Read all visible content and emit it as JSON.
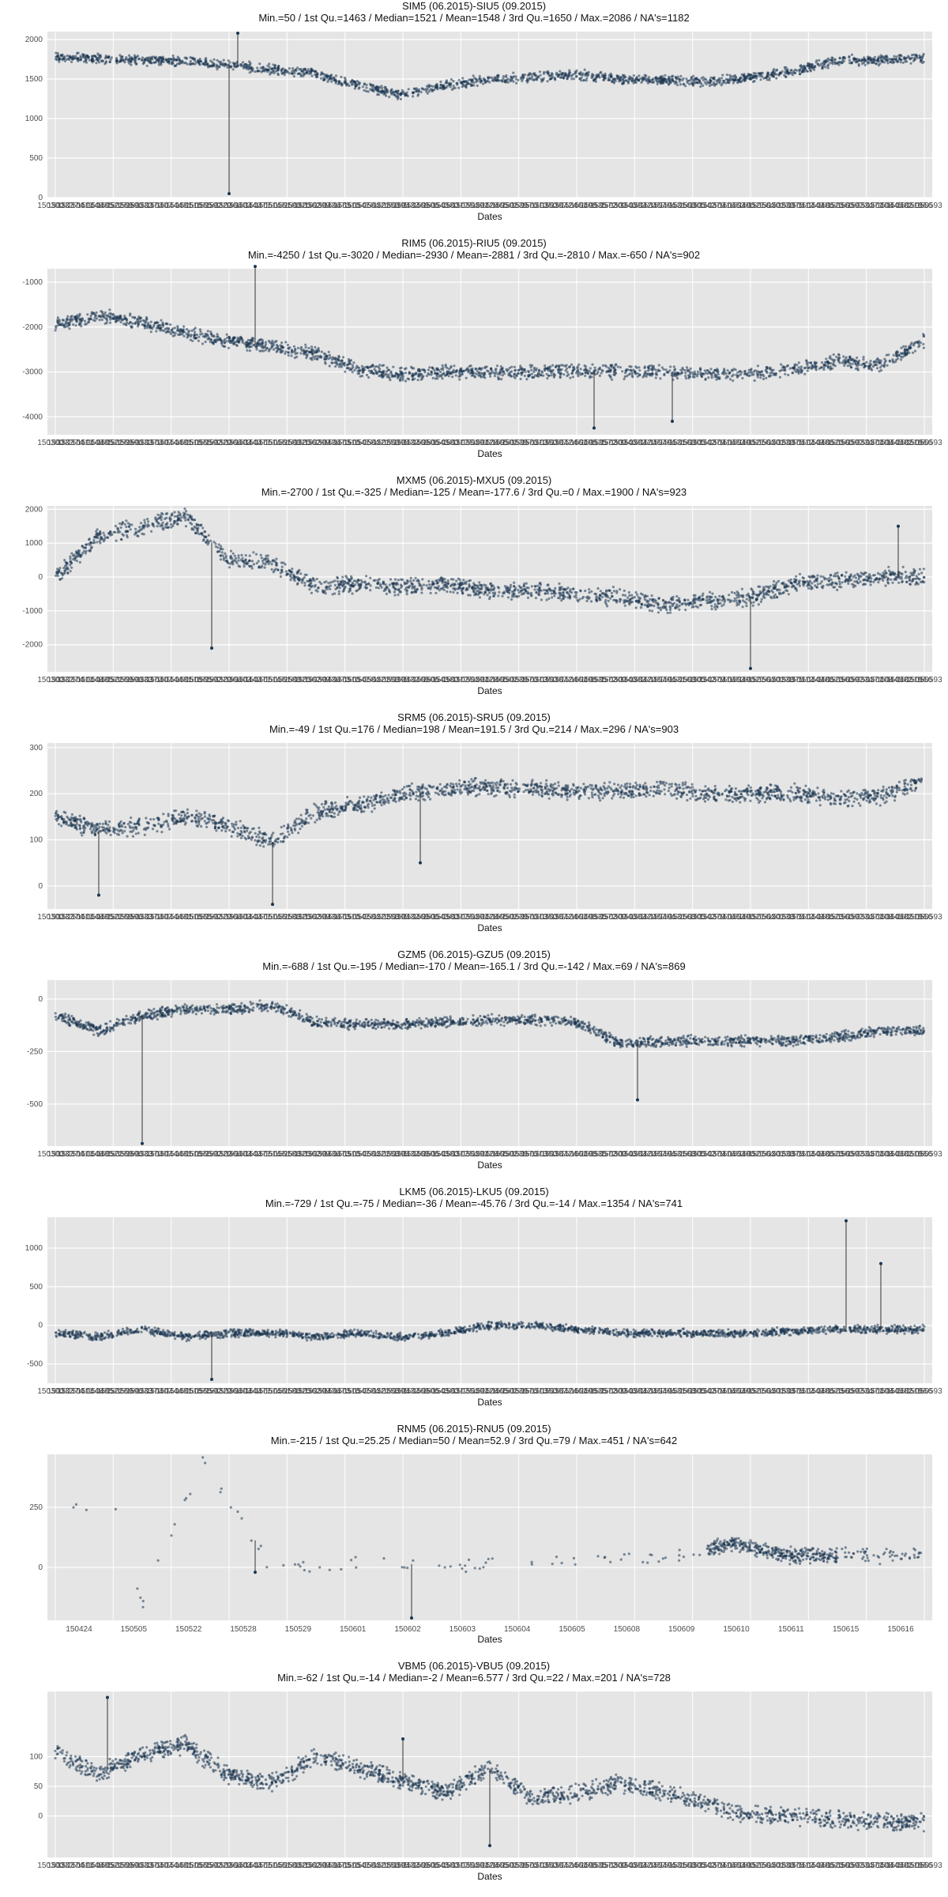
{
  "chart_data": [
    {
      "type": "scatter",
      "title": "SIM5 (06.2015)-SIU5 (09.2015)",
      "subtitle": "Min.=50 / 1st Qu.=1463 / Median=1521 / Mean=1548 / 3rd Qu.=1650 / Max.=2086 / NA's=1182",
      "xlabel": "Dates",
      "ylim": [
        0,
        2100
      ],
      "yticks": [
        0,
        500,
        1000,
        1500,
        2000
      ],
      "x_tick_labels": "dense",
      "trend": [
        [
          0,
          1780
        ],
        [
          0.05,
          1760
        ],
        [
          0.1,
          1740
        ],
        [
          0.15,
          1720
        ],
        [
          0.2,
          1680
        ],
        [
          0.25,
          1620
        ],
        [
          0.3,
          1560
        ],
        [
          0.35,
          1420
        ],
        [
          0.4,
          1300
        ],
        [
          0.45,
          1420
        ],
        [
          0.5,
          1500
        ],
        [
          0.55,
          1520
        ],
        [
          0.6,
          1560
        ],
        [
          0.65,
          1500
        ],
        [
          0.7,
          1480
        ],
        [
          0.75,
          1470
        ],
        [
          0.8,
          1520
        ],
        [
          0.85,
          1600
        ],
        [
          0.9,
          1740
        ],
        [
          0.95,
          1740
        ],
        [
          1.0,
          1760
        ]
      ],
      "spread": 50,
      "outliers": [
        [
          0.2,
          50
        ],
        [
          0.21,
          2080
        ]
      ]
    },
    {
      "type": "scatter",
      "title": "RIM5 (06.2015)-RIU5 (09.2015)",
      "subtitle": "Min.=-4250 / 1st Qu.=-3020 / Median=-2930 / Mean=-2881 / 3rd Qu.=-2810 / Max.=-650 / NA's=902",
      "xlabel": "Dates",
      "ylim": [
        -4400,
        -700
      ],
      "yticks": [
        -4000,
        -3000,
        -2000,
        -1000
      ],
      "x_tick_labels": "dense",
      "trend": [
        [
          0,
          -1950
        ],
        [
          0.05,
          -1750
        ],
        [
          0.1,
          -1900
        ],
        [
          0.15,
          -2150
        ],
        [
          0.2,
          -2300
        ],
        [
          0.25,
          -2450
        ],
        [
          0.3,
          -2600
        ],
        [
          0.35,
          -2950
        ],
        [
          0.4,
          -3050
        ],
        [
          0.45,
          -3000
        ],
        [
          0.5,
          -3000
        ],
        [
          0.55,
          -3000
        ],
        [
          0.6,
          -2950
        ],
        [
          0.65,
          -3000
        ],
        [
          0.7,
          -3000
        ],
        [
          0.75,
          -3050
        ],
        [
          0.8,
          -3050
        ],
        [
          0.85,
          -2950
        ],
        [
          0.9,
          -2750
        ],
        [
          0.95,
          -2850
        ],
        [
          1.0,
          -2300
        ]
      ],
      "spread": 120,
      "outliers": [
        [
          0.23,
          -650
        ],
        [
          0.62,
          -4250
        ],
        [
          0.71,
          -4100
        ]
      ]
    },
    {
      "type": "scatter",
      "title": "MXM5 (06.2015)-MXU5 (09.2015)",
      "subtitle": "Min.=-2700 / 1st Qu.=-325 / Median=-125 / Mean=-177.6 / 3rd Qu.=0 / Max.=1900 / NA's=923",
      "xlabel": "Dates",
      "ylim": [
        -2800,
        2100
      ],
      "yticks": [
        -2000,
        -1000,
        0,
        1000,
        2000
      ],
      "x_tick_labels": "dense",
      "trend": [
        [
          0,
          0
        ],
        [
          0.05,
          1200
        ],
        [
          0.1,
          1500
        ],
        [
          0.15,
          1800
        ],
        [
          0.2,
          500
        ],
        [
          0.25,
          400
        ],
        [
          0.3,
          -300
        ],
        [
          0.35,
          -200
        ],
        [
          0.4,
          -300
        ],
        [
          0.45,
          -200
        ],
        [
          0.5,
          -400
        ],
        [
          0.55,
          -400
        ],
        [
          0.6,
          -500
        ],
        [
          0.65,
          -600
        ],
        [
          0.7,
          -800
        ],
        [
          0.75,
          -700
        ],
        [
          0.8,
          -600
        ],
        [
          0.85,
          -200
        ],
        [
          0.9,
          -100
        ],
        [
          0.95,
          0
        ],
        [
          1.0,
          0
        ]
      ],
      "spread": 200,
      "outliers": [
        [
          0.18,
          -2100
        ],
        [
          0.8,
          -2700
        ],
        [
          0.97,
          1500
        ]
      ]
    },
    {
      "type": "scatter",
      "title": "SRM5 (06.2015)-SRU5 (09.2015)",
      "subtitle": "Min.=-49 / 1st Qu.=176 / Median=198 / Mean=191.5 / 3rd Qu.=214 / Max.=296 / NA's=903",
      "xlabel": "Dates",
      "ylim": [
        -50,
        310
      ],
      "yticks": [
        0,
        100,
        200,
        300
      ],
      "x_tick_labels": "dense",
      "trend": [
        [
          0,
          150
        ],
        [
          0.05,
          120
        ],
        [
          0.1,
          130
        ],
        [
          0.15,
          150
        ],
        [
          0.2,
          130
        ],
        [
          0.25,
          95
        ],
        [
          0.3,
          160
        ],
        [
          0.35,
          175
        ],
        [
          0.4,
          200
        ],
        [
          0.45,
          210
        ],
        [
          0.5,
          215
        ],
        [
          0.55,
          210
        ],
        [
          0.6,
          205
        ],
        [
          0.65,
          205
        ],
        [
          0.7,
          210
        ],
        [
          0.75,
          200
        ],
        [
          0.8,
          200
        ],
        [
          0.85,
          200
        ],
        [
          0.9,
          190
        ],
        [
          0.95,
          195
        ],
        [
          1.0,
          230
        ]
      ],
      "spread": 15,
      "outliers": [
        [
          0.25,
          -40
        ],
        [
          0.42,
          50
        ],
        [
          0.05,
          -20
        ]
      ]
    },
    {
      "type": "scatter",
      "title": "GZM5 (06.2015)-GZU5 (09.2015)",
      "subtitle": "Min.=-688 / 1st Qu.=-195 / Median=-170 / Mean=-165.1 / 3rd Qu.=-142 / Max.=69 / NA's=869",
      "xlabel": "Dates",
      "ylim": [
        -700,
        90
      ],
      "yticks": [
        -500,
        -250,
        0
      ],
      "x_tick_labels": "dense",
      "trend": [
        [
          0,
          -80
        ],
        [
          0.05,
          -150
        ],
        [
          0.1,
          -80
        ],
        [
          0.15,
          -50
        ],
        [
          0.2,
          -50
        ],
        [
          0.25,
          -30
        ],
        [
          0.3,
          -110
        ],
        [
          0.35,
          -120
        ],
        [
          0.4,
          -120
        ],
        [
          0.45,
          -110
        ],
        [
          0.5,
          -100
        ],
        [
          0.55,
          -100
        ],
        [
          0.6,
          -110
        ],
        [
          0.65,
          -210
        ],
        [
          0.7,
          -200
        ],
        [
          0.75,
          -200
        ],
        [
          0.8,
          -200
        ],
        [
          0.85,
          -200
        ],
        [
          0.9,
          -180
        ],
        [
          0.95,
          -150
        ],
        [
          1.0,
          -150
        ]
      ],
      "spread": 20,
      "outliers": [
        [
          0.1,
          -688
        ],
        [
          0.67,
          -480
        ]
      ]
    },
    {
      "type": "scatter",
      "title": "LKM5 (06.2015)-LKU5 (09.2015)",
      "subtitle": "Min.=-729 / 1st Qu.=-75 / Median=-36 / Mean=-45.76 / 3rd Qu.=-14 / Max.=1354 / NA's=741",
      "xlabel": "Dates",
      "ylim": [
        -750,
        1400
      ],
      "yticks": [
        -500,
        0,
        500,
        1000
      ],
      "x_tick_labels": "dense",
      "trend": [
        [
          0,
          -100
        ],
        [
          0.05,
          -150
        ],
        [
          0.1,
          -50
        ],
        [
          0.15,
          -150
        ],
        [
          0.2,
          -100
        ],
        [
          0.25,
          -100
        ],
        [
          0.3,
          -150
        ],
        [
          0.35,
          -100
        ],
        [
          0.4,
          -150
        ],
        [
          0.45,
          -100
        ],
        [
          0.5,
          0
        ],
        [
          0.55,
          0
        ],
        [
          0.6,
          -50
        ],
        [
          0.65,
          -100
        ],
        [
          0.7,
          -100
        ],
        [
          0.75,
          -100
        ],
        [
          0.8,
          -100
        ],
        [
          0.85,
          -80
        ],
        [
          0.9,
          -50
        ],
        [
          0.95,
          -50
        ],
        [
          1.0,
          -50
        ]
      ],
      "spread": 40,
      "outliers": [
        [
          0.18,
          -700
        ],
        [
          0.91,
          1354
        ],
        [
          0.95,
          800
        ]
      ]
    },
    {
      "type": "scatter",
      "title": "RNM5 (06.2015)-RNU5 (09.2015)",
      "subtitle": "Min.=-215 / 1st Qu.=25.25 / Median=50 / Mean=52.9 / 3rd Qu.=79 / Max.=451 / NA's=642",
      "xlabel": "Dates",
      "ylim": [
        -220,
        470
      ],
      "yticks": [
        0,
        250
      ],
      "x_tick_labels": [
        "150424",
        "150505",
        "150522",
        "150528",
        "150529",
        "150601",
        "150602",
        "150603",
        "150604",
        "150605",
        "150608",
        "150609",
        "150610",
        "150611",
        "150615",
        "150616"
      ],
      "trend": [
        [
          0,
          240
        ],
        [
          0.07,
          240
        ],
        [
          0.1,
          -150
        ],
        [
          0.17,
          450
        ],
        [
          0.25,
          0
        ],
        [
          0.35,
          20
        ],
        [
          0.45,
          10
        ],
        [
          0.55,
          20
        ],
        [
          0.65,
          30
        ],
        [
          0.72,
          50
        ],
        [
          0.78,
          100
        ],
        [
          0.84,
          50
        ],
        [
          0.9,
          50
        ]
      ],
      "spread": 25,
      "outliers": [
        [
          0.23,
          -20
        ],
        [
          0.41,
          -210
        ]
      ]
    },
    {
      "type": "scatter",
      "title": "VBM5 (06.2015)-VBU5 (09.2015)",
      "subtitle": "Min.=-62 / 1st Qu.=-14 / Median=-2 / Mean=6.577 / 3rd Qu.=22 / Max.=201 / NA's=728",
      "xlabel": "Dates",
      "ylim": [
        -70,
        210
      ],
      "yticks": [
        0,
        50,
        100
      ],
      "x_tick_labels": "dense",
      "trend": [
        [
          0,
          110
        ],
        [
          0.05,
          70
        ],
        [
          0.1,
          105
        ],
        [
          0.15,
          120
        ],
        [
          0.2,
          70
        ],
        [
          0.25,
          55
        ],
        [
          0.3,
          100
        ],
        [
          0.35,
          80
        ],
        [
          0.4,
          60
        ],
        [
          0.45,
          40
        ],
        [
          0.5,
          80
        ],
        [
          0.55,
          30
        ],
        [
          0.6,
          40
        ],
        [
          0.65,
          55
        ],
        [
          0.7,
          40
        ],
        [
          0.75,
          20
        ],
        [
          0.8,
          0
        ],
        [
          0.85,
          0
        ],
        [
          0.9,
          -5
        ],
        [
          0.95,
          -10
        ],
        [
          1.0,
          -10
        ]
      ],
      "spread": 12,
      "outliers": [
        [
          0.06,
          200
        ],
        [
          0.4,
          130
        ],
        [
          0.5,
          -50
        ]
      ]
    }
  ]
}
